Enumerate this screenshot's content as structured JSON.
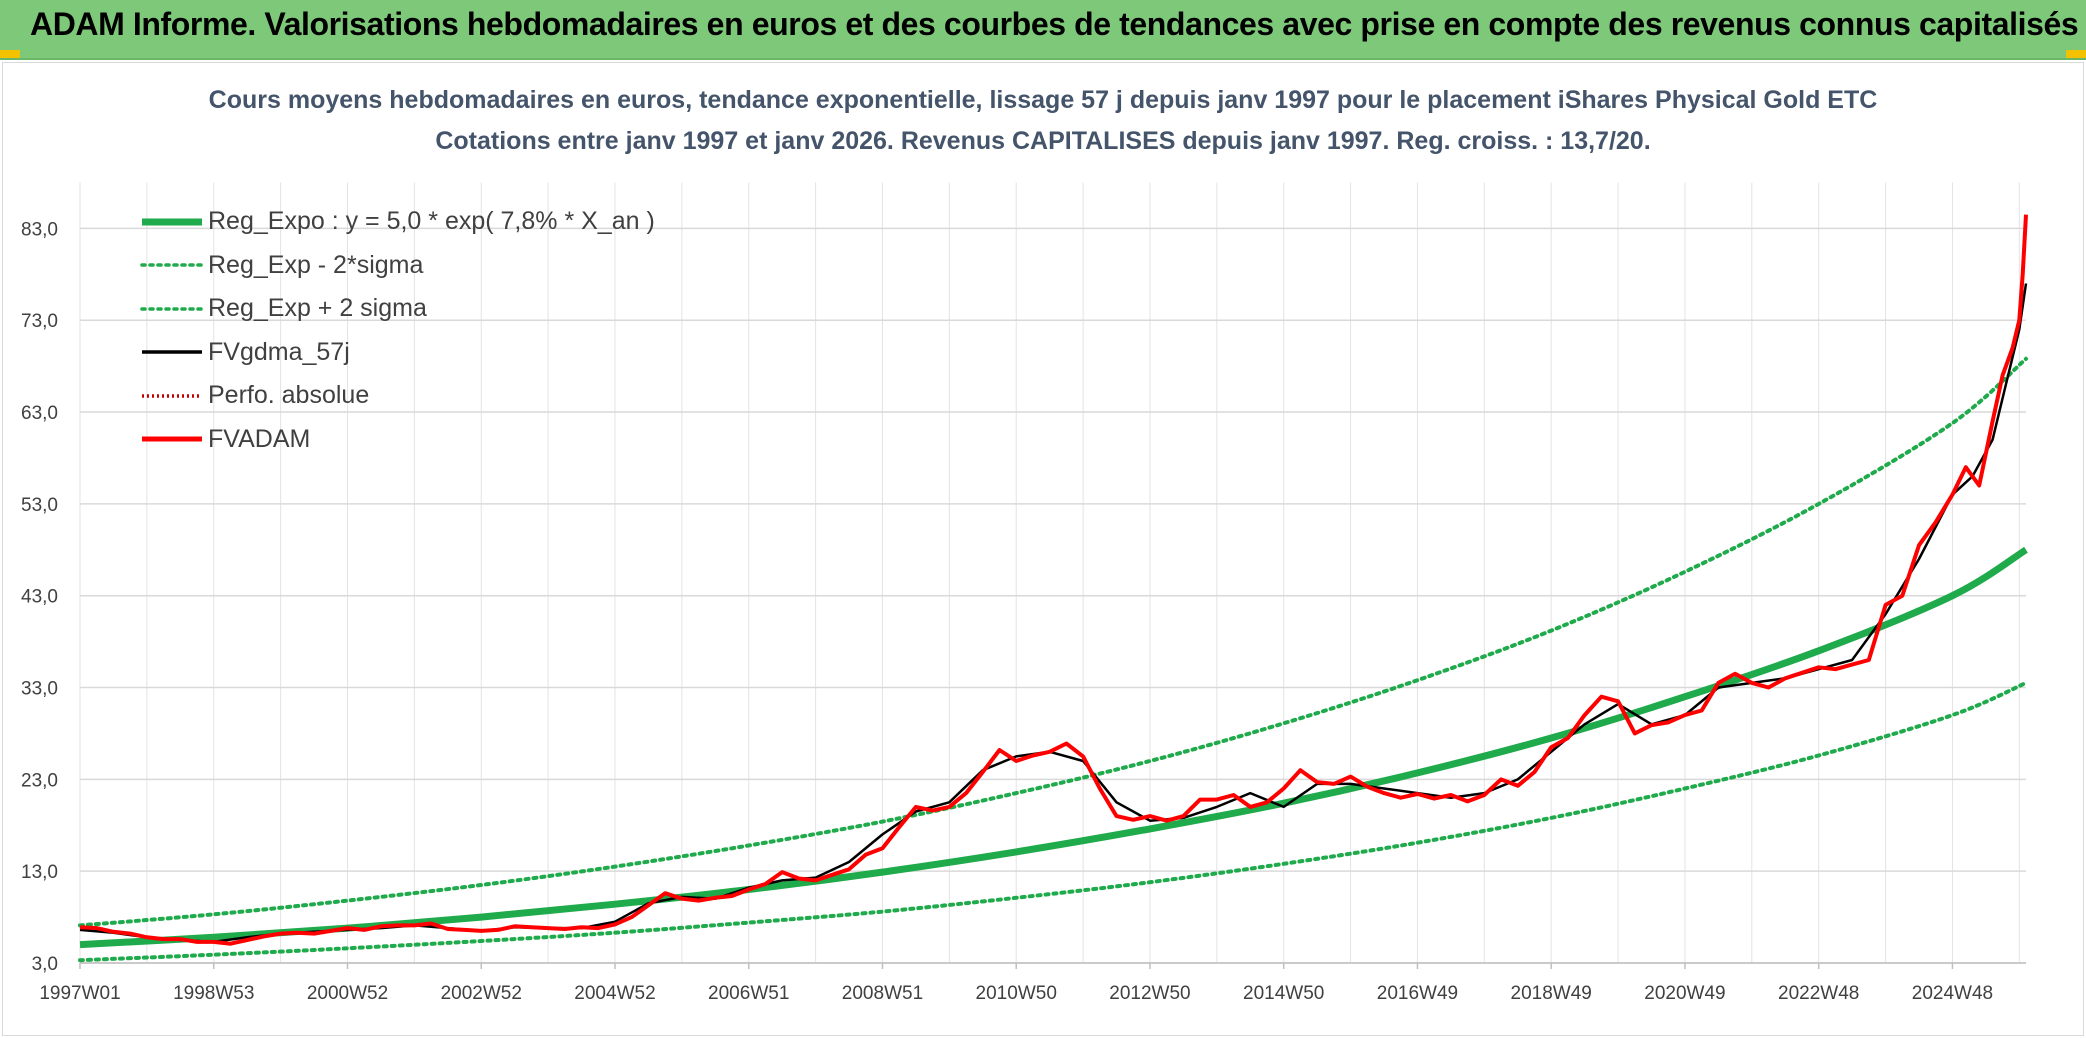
{
  "header": {
    "title": "ADAM Informe. Valorisations hebdomadaires en euros et des courbes de tendances avec prise en compte des revenus connus capitalisés"
  },
  "colors": {
    "banner": "#7ec879",
    "reg_expo": "#1faa4b",
    "sigma": "#1faa4b",
    "fvgdma": "#000000",
    "fvadam": "#ff0000",
    "perfo": "#c00000",
    "title_text": "#44546a"
  },
  "chart_data": {
    "type": "line",
    "title": "Cours moyens hebdomadaires en euros, tendance exponentielle, lissage 57 j depuis janv 1997 pour le placement iShares Physical Gold ETC",
    "subtitle": "Cotations entre janv 1997 et janv 2026. Revenus CAPITALISES depuis janv 1997. Reg. croiss. : 13,7/20.",
    "xlabel": "",
    "ylabel": "",
    "xlim": [
      1997.0,
      2026.1
    ],
    "ylim": [
      3.0,
      88.0
    ],
    "y_ticks": [
      "3,0",
      "13,0",
      "23,0",
      "33,0",
      "43,0",
      "53,0",
      "63,0",
      "73,0",
      "83,0"
    ],
    "x_ticks": [
      {
        "label": "1997W01",
        "x": 1997.0
      },
      {
        "label": "1998W53",
        "x": 1999.0
      },
      {
        "label": "2000W52",
        "x": 2001.0
      },
      {
        "label": "2002W52",
        "x": 2003.0
      },
      {
        "label": "2004W52",
        "x": 2005.0
      },
      {
        "label": "2006W51",
        "x": 2007.0
      },
      {
        "label": "2008W51",
        "x": 2009.0
      },
      {
        "label": "2010W50",
        "x": 2011.0
      },
      {
        "label": "2012W50",
        "x": 2013.0
      },
      {
        "label": "2014W50",
        "x": 2015.0
      },
      {
        "label": "2016W49",
        "x": 2017.0
      },
      {
        "label": "2018W49",
        "x": 2019.0
      },
      {
        "label": "2020W49",
        "x": 2021.0
      },
      {
        "label": "2022W48",
        "x": 2023.0
      },
      {
        "label": "2024W48",
        "x": 2025.0
      }
    ],
    "grid": true,
    "legend_position": "top-left",
    "legend": [
      {
        "key": "reg_expo",
        "label": "Reg_Expo : y = 5,0 * exp( 7,8% *  X_an )"
      },
      {
        "key": "reg_minus",
        "label": "Reg_Exp - 2*sigma"
      },
      {
        "key": "reg_plus",
        "label": "Reg_Exp + 2 sigma"
      },
      {
        "key": "fvgdma",
        "label": "FVgdma_57j"
      },
      {
        "key": "perfo",
        "label": "Perfo. absolue"
      },
      {
        "key": "fvadam",
        "label": "FVADAM"
      }
    ],
    "series": [
      {
        "name": "Reg_Expo : y = 5,0 * exp( 7,8% *  X_an )",
        "key": "reg_expo",
        "x": [
          1997.0,
          1999.0,
          2001.0,
          2003.0,
          2005.0,
          2007.0,
          2009.0,
          2011.0,
          2013.0,
          2015.0,
          2017.0,
          2019.0,
          2021.0,
          2023.0,
          2025.0,
          2026.1
        ],
        "y": [
          5.0,
          5.8,
          6.8,
          8.0,
          9.4,
          11.0,
          12.9,
          15.1,
          17.6,
          20.4,
          23.7,
          27.5,
          32.0,
          37.0,
          43.0,
          48.0
        ]
      },
      {
        "name": "Reg_Exp - 2*sigma",
        "key": "reg_minus",
        "x": [
          1997.0,
          1999.0,
          2001.0,
          2003.0,
          2005.0,
          2007.0,
          2009.0,
          2011.0,
          2013.0,
          2015.0,
          2017.0,
          2019.0,
          2021.0,
          2023.0,
          2025.0,
          2026.1
        ],
        "y": [
          3.3,
          3.9,
          4.6,
          5.4,
          6.3,
          7.4,
          8.6,
          10.1,
          11.8,
          13.8,
          16.1,
          18.8,
          22.0,
          25.6,
          30.0,
          33.5
        ]
      },
      {
        "name": "Reg_Exp + 2 sigma",
        "key": "reg_plus",
        "x": [
          1997.0,
          1999.0,
          2001.0,
          2003.0,
          2005.0,
          2007.0,
          2009.0,
          2011.0,
          2013.0,
          2015.0,
          2017.0,
          2019.0,
          2021.0,
          2023.0,
          2025.0,
          2026.1
        ],
        "y": [
          7.1,
          8.3,
          9.8,
          11.5,
          13.5,
          15.8,
          18.4,
          21.5,
          25.0,
          29.1,
          33.8,
          39.2,
          45.6,
          53.0,
          61.8,
          68.8
        ]
      },
      {
        "name": "FVgdma_57j",
        "key": "fvgdma",
        "x": [
          1997.0,
          1997.5,
          1998.0,
          1998.5,
          1999.0,
          1999.5,
          2000.0,
          2000.5,
          2001.0,
          2001.5,
          2002.0,
          2002.5,
          2003.0,
          2003.5,
          2004.0,
          2004.5,
          2005.0,
          2005.5,
          2006.0,
          2006.5,
          2007.0,
          2007.5,
          2008.0,
          2008.5,
          2009.0,
          2009.5,
          2010.0,
          2010.5,
          2011.0,
          2011.5,
          2012.0,
          2012.5,
          2013.0,
          2013.5,
          2014.0,
          2014.5,
          2015.0,
          2015.5,
          2016.0,
          2016.5,
          2017.0,
          2017.5,
          2018.0,
          2018.5,
          2019.0,
          2019.5,
          2020.0,
          2020.5,
          2021.0,
          2021.5,
          2022.0,
          2022.5,
          2023.0,
          2023.5,
          2024.0,
          2024.5,
          2025.0,
          2025.3,
          2025.6,
          2025.8,
          2026.0,
          2026.1
        ],
        "y": [
          6.6,
          6.3,
          5.8,
          5.5,
          5.3,
          5.8,
          6.2,
          6.4,
          6.6,
          6.8,
          7.1,
          6.8,
          6.5,
          6.9,
          6.8,
          6.8,
          7.5,
          9.5,
          10.2,
          10.0,
          11.2,
          12.0,
          12.3,
          14.0,
          17.0,
          19.5,
          20.5,
          24.0,
          25.5,
          26.0,
          25.0,
          20.5,
          18.5,
          18.8,
          20.0,
          21.5,
          20.0,
          22.5,
          22.5,
          22.0,
          21.5,
          21.0,
          21.5,
          23.0,
          26.0,
          29.0,
          31.2,
          29.0,
          30.0,
          33.0,
          33.5,
          34.0,
          35.0,
          36.0,
          41.0,
          47.0,
          54.0,
          56.0,
          60.0,
          66.0,
          72.0,
          77.0
        ]
      },
      {
        "name": "FVADAM",
        "key": "fvadam",
        "x": [
          1997.0,
          1997.25,
          1997.5,
          1997.75,
          1998.0,
          1998.25,
          1998.5,
          1998.75,
          1999.0,
          1999.25,
          1999.5,
          1999.75,
          2000.0,
          2000.25,
          2000.5,
          2000.75,
          2001.0,
          2001.25,
          2001.5,
          2001.75,
          2002.0,
          2002.25,
          2002.5,
          2002.75,
          2003.0,
          2003.25,
          2003.5,
          2003.75,
          2004.0,
          2004.25,
          2004.5,
          2004.75,
          2005.0,
          2005.25,
          2005.5,
          2005.75,
          2006.0,
          2006.25,
          2006.5,
          2006.75,
          2007.0,
          2007.25,
          2007.5,
          2007.75,
          2008.0,
          2008.25,
          2008.5,
          2008.75,
          2009.0,
          2009.25,
          2009.5,
          2009.75,
          2010.0,
          2010.25,
          2010.5,
          2010.75,
          2011.0,
          2011.25,
          2011.5,
          2011.75,
          2012.0,
          2012.25,
          2012.5,
          2012.75,
          2013.0,
          2013.25,
          2013.5,
          2013.75,
          2014.0,
          2014.25,
          2014.5,
          2014.75,
          2015.0,
          2015.25,
          2015.5,
          2015.75,
          2016.0,
          2016.25,
          2016.5,
          2016.75,
          2017.0,
          2017.25,
          2017.5,
          2017.75,
          2018.0,
          2018.25,
          2018.5,
          2018.75,
          2019.0,
          2019.25,
          2019.5,
          2019.75,
          2020.0,
          2020.25,
          2020.5,
          2020.75,
          2021.0,
          2021.25,
          2021.5,
          2021.75,
          2022.0,
          2022.25,
          2022.5,
          2022.75,
          2023.0,
          2023.25,
          2023.5,
          2023.75,
          2024.0,
          2024.25,
          2024.5,
          2024.75,
          2025.0,
          2025.2,
          2025.4,
          2025.6,
          2025.75,
          2025.9,
          2026.0,
          2026.05,
          2026.1
        ],
        "y": [
          6.9,
          6.8,
          6.4,
          6.2,
          5.8,
          5.6,
          5.6,
          5.3,
          5.3,
          5.1,
          5.5,
          5.9,
          6.2,
          6.3,
          6.2,
          6.5,
          6.8,
          6.6,
          7.0,
          7.1,
          7.1,
          7.3,
          6.7,
          6.6,
          6.5,
          6.6,
          7.0,
          6.9,
          6.8,
          6.7,
          6.9,
          6.8,
          7.2,
          8.0,
          9.3,
          10.6,
          10.0,
          9.8,
          10.1,
          10.3,
          11.0,
          11.6,
          12.9,
          12.2,
          12.0,
          12.6,
          13.2,
          14.8,
          15.5,
          17.8,
          20.0,
          19.6,
          20.0,
          21.5,
          23.8,
          26.2,
          25.0,
          25.6,
          26.0,
          26.9,
          25.5,
          22.0,
          19.0,
          18.6,
          19.0,
          18.5,
          19.0,
          20.8,
          20.8,
          21.3,
          20.0,
          20.5,
          22.0,
          24.0,
          22.7,
          22.5,
          23.3,
          22.2,
          21.5,
          21.0,
          21.4,
          20.9,
          21.3,
          20.6,
          21.3,
          23.0,
          22.3,
          23.8,
          26.5,
          27.5,
          30.0,
          32.0,
          31.5,
          28.0,
          28.9,
          29.2,
          30.0,
          30.5,
          33.5,
          34.5,
          33.5,
          33.0,
          34.0,
          34.6,
          35.2,
          35.0,
          35.5,
          36.0,
          42.0,
          43.0,
          48.5,
          51.0,
          54.0,
          57.0,
          55.0,
          62.0,
          67.0,
          70.0,
          73.0,
          78.0,
          84.5
        ]
      }
    ]
  }
}
